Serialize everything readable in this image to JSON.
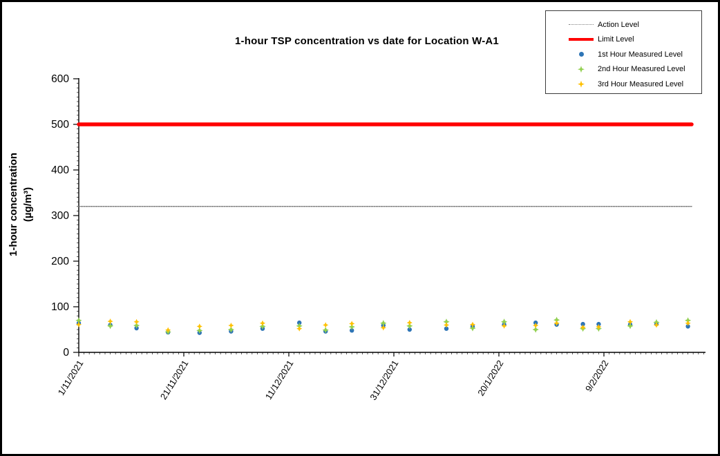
{
  "title": "1-hour TSP concentration vs date for Location W-A1",
  "y_axis": {
    "title_line1": "1-hour concentration",
    "title_line2": "(µg/m³)",
    "tick_labels": [
      "0",
      "100",
      "200",
      "300",
      "400",
      "500",
      "600"
    ]
  },
  "x_axis": {
    "tick_labels": [
      "1/11/2021",
      "21/11/2021",
      "11/12/2021",
      "31/12/2021",
      "20/1/2022",
      "9/2/2022"
    ],
    "tick_interval_days": 20
  },
  "legend": {
    "items": [
      {
        "label": "Action Level",
        "swatch": "thin-line",
        "color": "#7F7F7F"
      },
      {
        "label": "Limit Level",
        "swatch": "thick-line",
        "color": "#FF0000"
      },
      {
        "label": "1st Hour Measured Level",
        "swatch": "circle",
        "color": "#2E75B6"
      },
      {
        "label": "2nd Hour Measured Level",
        "swatch": "star",
        "color": "#92D050"
      },
      {
        "label": "3rd Hour Measured Level",
        "swatch": "star",
        "color": "#FFC000"
      }
    ]
  },
  "chart_data": {
    "type": "scatter",
    "title": "1-hour TSP concentration vs date for Location W-A1",
    "xlabel": "",
    "ylabel": "1-hour concentration (µg/m³)",
    "ylim": [
      0,
      600
    ],
    "y_major_step": 100,
    "y_minor_step": 10,
    "x_total_days": 119,
    "x_major_tick_days": 20,
    "grid": false,
    "legend_position": "top-right",
    "x_dates": [
      "1/11/2021",
      "7/11/2021",
      "12/11/2021",
      "18/11/2021",
      "24/11/2021",
      "30/11/2021",
      "6/12/2021",
      "13/12/2021",
      "18/12/2021",
      "23/12/2021",
      "29/12/2021",
      "3/1/2022",
      "10/1/2022",
      "15/1/2022",
      "21/1/2022",
      "27/1/2022",
      "31/1/2022",
      "5/2/2022",
      "8/2/2022",
      "14/2/2022",
      "19/2/2022",
      "25/2/2022"
    ],
    "x_day_offsets": [
      0,
      6,
      11,
      17,
      23,
      29,
      35,
      42,
      47,
      52,
      58,
      63,
      70,
      75,
      81,
      87,
      91,
      96,
      99,
      105,
      110,
      116
    ],
    "series": [
      {
        "name": "1st Hour Measured Level",
        "marker": "circle",
        "color": "#2E75B6",
        "values": [
          64,
          60,
          53,
          44,
          43,
          46,
          52,
          65,
          46,
          48,
          59,
          50,
          52,
          57,
          61,
          65,
          61,
          62,
          62,
          61,
          62,
          57
        ]
      },
      {
        "name": "2nd Hour Measured Level",
        "marker": "star",
        "color": "#92D050",
        "values": [
          70,
          58,
          59,
          45,
          48,
          50,
          57,
          58,
          49,
          56,
          64,
          58,
          67,
          53,
          67,
          50,
          71,
          52,
          52,
          58,
          66,
          70
        ]
      },
      {
        "name": "3rd Hour Measured Level",
        "marker": "star",
        "color": "#FFC000",
        "values": [
          61,
          68,
          67,
          49,
          57,
          59,
          64,
          52,
          60,
          63,
          54,
          65,
          60,
          61,
          58,
          59,
          64,
          55,
          56,
          67,
          60,
          64
        ]
      }
    ],
    "reference_lines": [
      {
        "name": "Action Level",
        "value": 320,
        "color": "#7F7F7F",
        "style": "dotted",
        "width": 1.5
      },
      {
        "name": "Limit Level",
        "value": 500,
        "color": "#FF0000",
        "style": "solid",
        "width": 5.5
      }
    ]
  }
}
